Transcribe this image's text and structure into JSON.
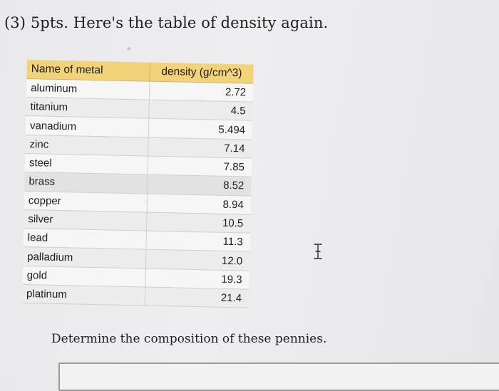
{
  "question": {
    "title": "(3) 5pts. Here's the table of density again.",
    "prompt": "Determine the composition of these pennies."
  },
  "table": {
    "headers": {
      "name": "Name of metal",
      "density": "density (g/cm^3)"
    },
    "rows": [
      {
        "name": "aluminum",
        "density": "2.72"
      },
      {
        "name": "titanium",
        "density": "4.5"
      },
      {
        "name": "vanadium",
        "density": "5.494"
      },
      {
        "name": "zinc",
        "density": "7.14"
      },
      {
        "name": "steel",
        "density": "7.85"
      },
      {
        "name": "brass",
        "density": "8.52"
      },
      {
        "name": "copper",
        "density": "8.94"
      },
      {
        "name": "silver",
        "density": "10.5"
      },
      {
        "name": "lead",
        "density": "11.3"
      },
      {
        "name": "palladium",
        "density": "12.0"
      },
      {
        "name": "gold",
        "density": "19.3"
      },
      {
        "name": "platinum",
        "density": "21.4"
      }
    ]
  },
  "colors": {
    "header_fill": "#f3d37a",
    "text": "#1e1e1e",
    "background": "#ececee"
  },
  "icons": {
    "cursor": "text-cursor-icon"
  },
  "answer": {
    "value": ""
  }
}
